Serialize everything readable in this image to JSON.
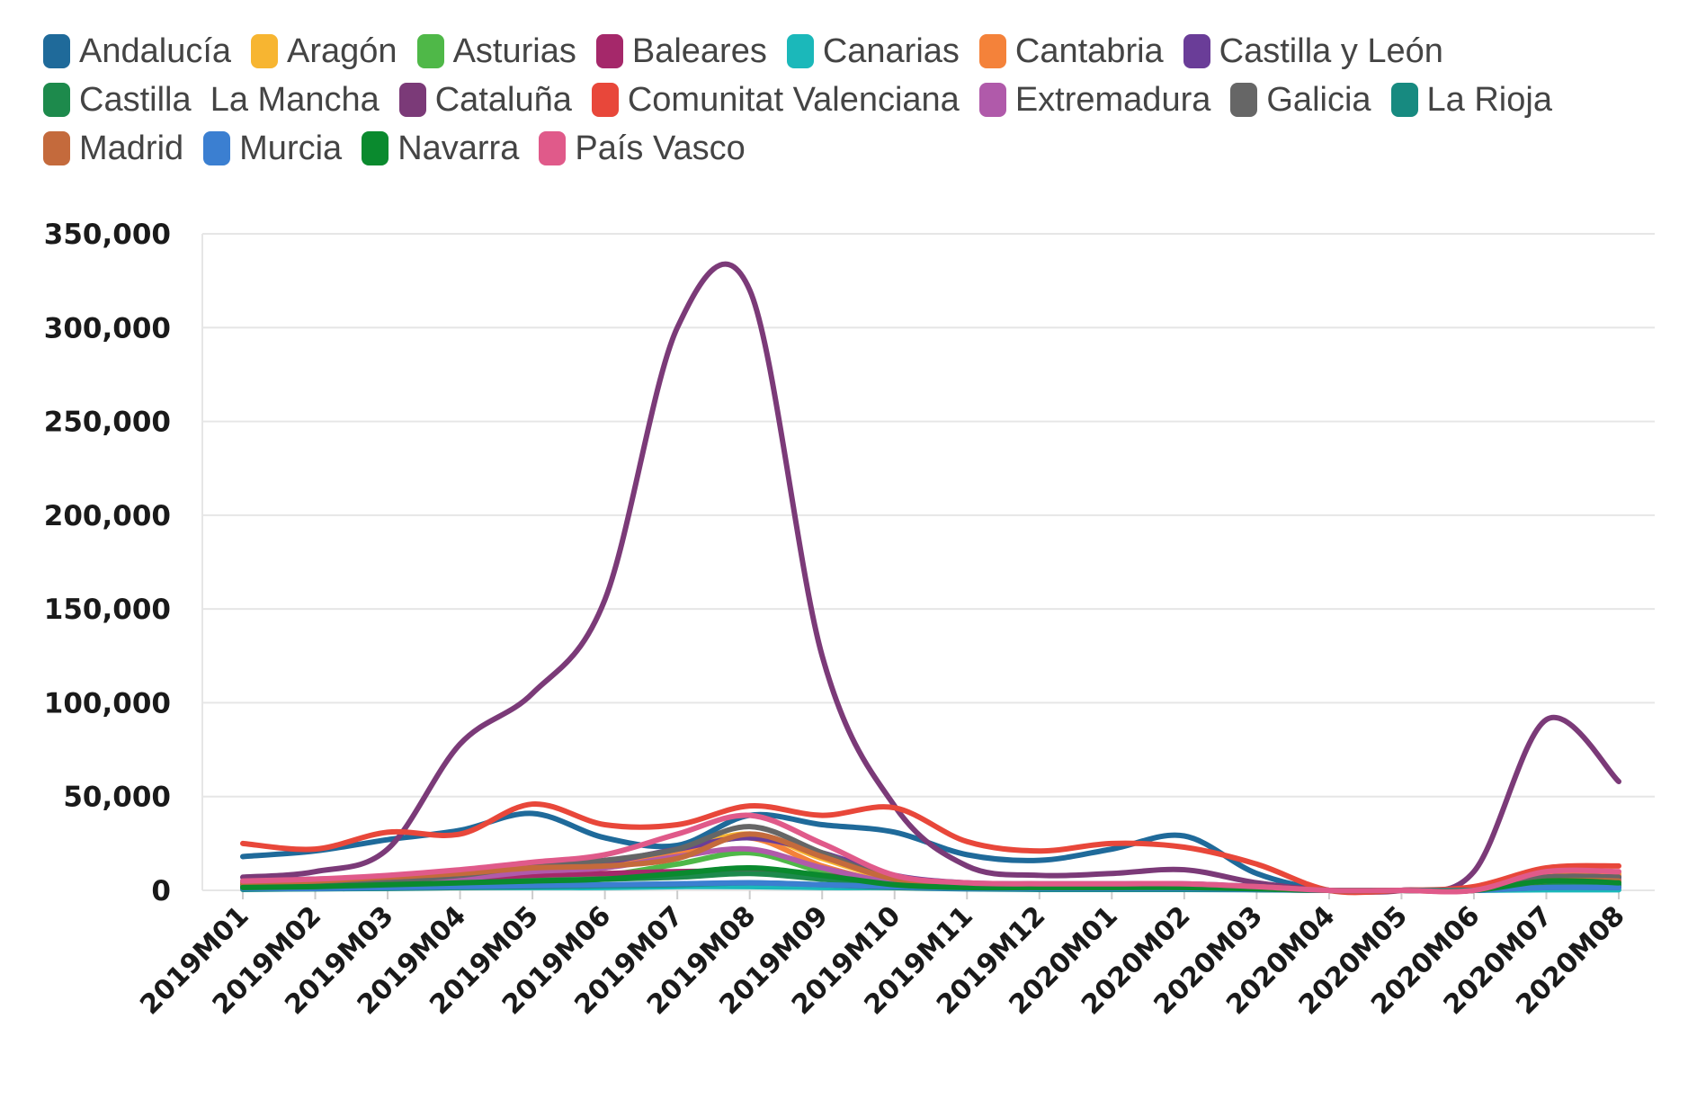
{
  "chart_data": {
    "type": "line",
    "title": "",
    "xlabel": "",
    "ylabel": "",
    "ylim": [
      0,
      350000
    ],
    "yticks": [
      0,
      50000,
      100000,
      150000,
      200000,
      250000,
      300000,
      350000
    ],
    "ytick_labels": [
      "0",
      "50,000",
      "100,000",
      "150,000",
      "200,000",
      "250,000",
      "300,000",
      "350,000"
    ],
    "grid": true,
    "legend_position": "top",
    "categories": [
      "2019M01",
      "2019M02",
      "2019M03",
      "2019M04",
      "2019M05",
      "2019M06",
      "2019M07",
      "2019M08",
      "2019M09",
      "2019M10",
      "2019M11",
      "2019M12",
      "2020M01",
      "2020M02",
      "2020M03",
      "2020M04",
      "2020M05",
      "2020M06",
      "2020M07",
      "2020M08"
    ],
    "series": [
      {
        "name": "Andalucía",
        "color": "#1f6a9a",
        "values": [
          18000,
          21000,
          27000,
          32000,
          41000,
          28000,
          24000,
          40000,
          35000,
          31000,
          19000,
          16000,
          22000,
          29000,
          9000,
          0,
          0,
          0,
          5000,
          5000
        ]
      },
      {
        "name": "Aragón",
        "color": "#f7b531",
        "values": [
          3000,
          3500,
          5000,
          7000,
          12000,
          14000,
          21000,
          30000,
          17000,
          6000,
          3000,
          2500,
          2500,
          2500,
          1500,
          0,
          0,
          0,
          8000,
          9000
        ]
      },
      {
        "name": "Asturias",
        "color": "#4fb848",
        "values": [
          1000,
          1500,
          2500,
          4000,
          6000,
          8000,
          14000,
          20000,
          10000,
          3000,
          1500,
          1000,
          1000,
          1000,
          500,
          0,
          0,
          0,
          3000,
          3000
        ]
      },
      {
        "name": "Baleares",
        "color": "#a5286a",
        "values": [
          1000,
          1500,
          3000,
          6000,
          8000,
          9000,
          10000,
          10000,
          8000,
          4000,
          1500,
          1000,
          1000,
          1000,
          500,
          0,
          0,
          0,
          2000,
          2000
        ]
      },
      {
        "name": "Canarias",
        "color": "#1bb8ba",
        "values": [
          1500,
          1500,
          1500,
          1500,
          1500,
          1500,
          2000,
          2000,
          1500,
          1500,
          1500,
          1500,
          1500,
          1500,
          800,
          0,
          0,
          0,
          300,
          300
        ]
      },
      {
        "name": "Cantabria",
        "color": "#f4823a",
        "values": [
          2000,
          2500,
          4000,
          7000,
          11000,
          12000,
          20000,
          28000,
          13000,
          4000,
          2000,
          1500,
          1500,
          1500,
          800,
          0,
          0,
          0,
          8000,
          8000
        ]
      },
      {
        "name": "Castilla y León",
        "color": "#6a3d98",
        "values": [
          5000,
          6000,
          7000,
          9000,
          12000,
          15000,
          22000,
          28000,
          20000,
          8000,
          4000,
          3500,
          3500,
          3500,
          2000,
          0,
          0,
          0,
          7000,
          7000
        ]
      },
      {
        "name": "Castilla  La Mancha",
        "color": "#1d8a4c",
        "values": [
          2000,
          2500,
          3000,
          4000,
          5000,
          6000,
          7000,
          9000,
          6000,
          3000,
          2000,
          2000,
          2000,
          2000,
          1000,
          0,
          0,
          0,
          3000,
          3000
        ]
      },
      {
        "name": "Cataluña",
        "color": "#7b3a78",
        "values": [
          7000,
          10000,
          22000,
          78000,
          105000,
          155000,
          300000,
          320000,
          125000,
          45000,
          13000,
          8000,
          9000,
          11000,
          4000,
          0,
          0,
          10000,
          91000,
          58000
        ]
      },
      {
        "name": "Comunitat Valenciana",
        "color": "#e8473a",
        "values": [
          25000,
          22000,
          31000,
          30000,
          46000,
          35000,
          35000,
          45000,
          40000,
          44000,
          26000,
          21000,
          25000,
          23000,
          14000,
          0,
          0,
          2000,
          12000,
          13000
        ]
      },
      {
        "name": "Extremadura",
        "color": "#b05aaa",
        "values": [
          1000,
          1500,
          3000,
          6000,
          10000,
          12000,
          18000,
          22000,
          12000,
          4000,
          1500,
          1000,
          1000,
          1000,
          500,
          0,
          0,
          0,
          6000,
          6000
        ]
      },
      {
        "name": "Galicia",
        "color": "#666666",
        "values": [
          3000,
          3500,
          5000,
          8000,
          13000,
          16000,
          22000,
          34000,
          20000,
          6000,
          3000,
          2500,
          2500,
          2500,
          1500,
          0,
          0,
          0,
          7000,
          7000
        ]
      },
      {
        "name": "La Rioja",
        "color": "#178a80",
        "values": [
          500,
          800,
          1000,
          1500,
          2000,
          2500,
          3000,
          4000,
          3000,
          1500,
          800,
          500,
          500,
          500,
          300,
          0,
          0,
          0,
          1500,
          1500
        ]
      },
      {
        "name": "Madrid",
        "color": "#c46a3c",
        "values": [
          4000,
          5000,
          7000,
          9000,
          12000,
          13000,
          17000,
          30000,
          18000,
          6000,
          3000,
          3000,
          3000,
          3000,
          2000,
          0,
          0,
          0,
          5000,
          5000
        ]
      },
      {
        "name": "Murcia",
        "color": "#3b7fd1",
        "values": [
          1000,
          1000,
          1500,
          2000,
          2500,
          3000,
          3500,
          4000,
          3000,
          2000,
          1000,
          1000,
          1000,
          1000,
          500,
          0,
          0,
          0,
          1500,
          1500
        ]
      },
      {
        "name": "Navarra",
        "color": "#0a8a2e",
        "values": [
          1500,
          2000,
          3000,
          4000,
          5000,
          6000,
          9000,
          12000,
          8000,
          3000,
          1500,
          1500,
          1500,
          1500,
          800,
          0,
          0,
          0,
          5000,
          4000
        ]
      },
      {
        "name": "País Vasco",
        "color": "#e05a8a",
        "values": [
          5000,
          6000,
          8000,
          11000,
          15000,
          19000,
          30000,
          40000,
          25000,
          8000,
          4000,
          3500,
          3500,
          3500,
          2000,
          0,
          0,
          0,
          10000,
          10000
        ]
      }
    ]
  }
}
